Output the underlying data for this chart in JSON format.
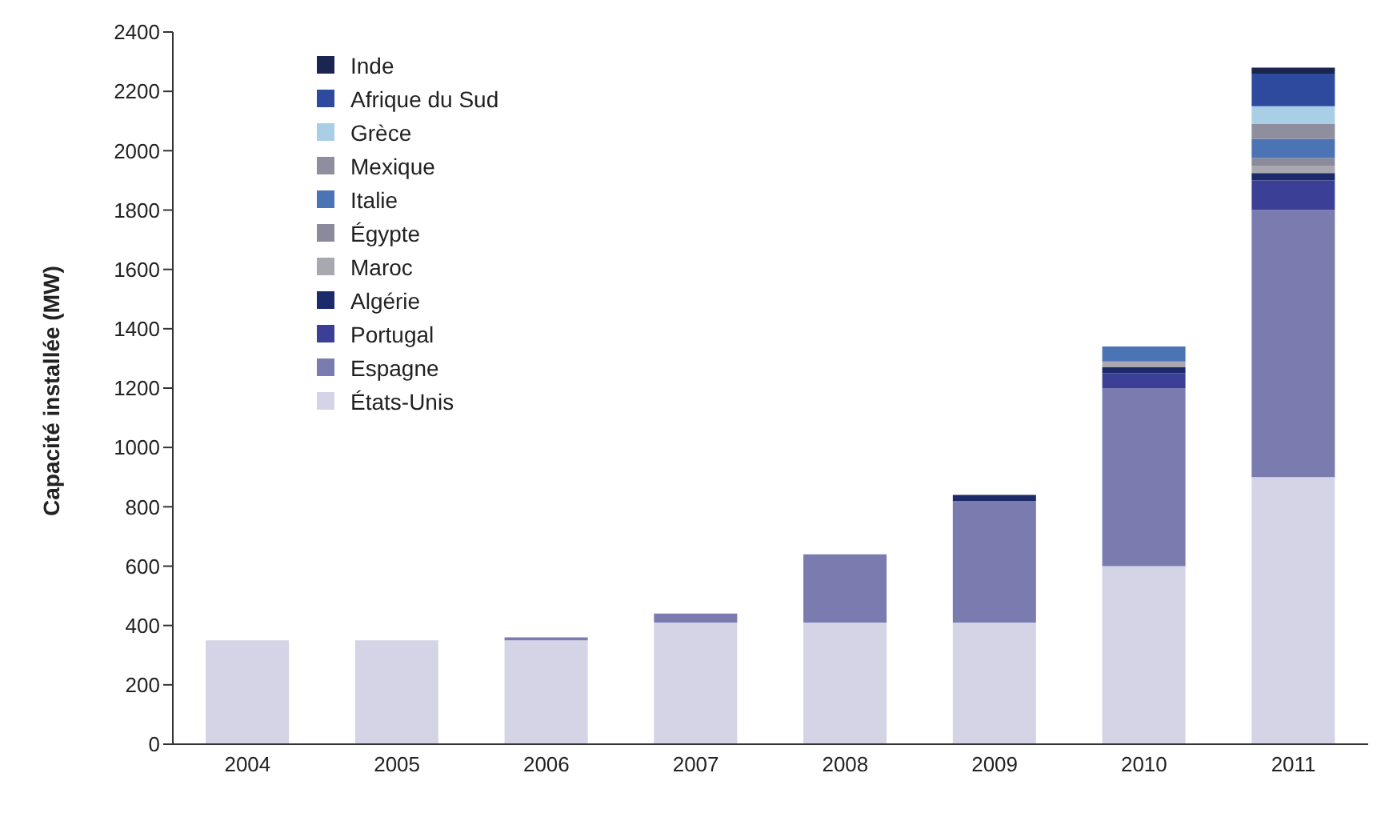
{
  "chart_data": {
    "type": "bar",
    "stacked": true,
    "ylabel": "Capacité installée (MW)",
    "categories": [
      "2004",
      "2005",
      "2006",
      "2007",
      "2008",
      "2009",
      "2010",
      "2011"
    ],
    "series": [
      {
        "name": "États-Unis",
        "color": "#d4d4e6",
        "values": [
          350,
          350,
          350,
          410,
          410,
          410,
          600,
          900
        ]
      },
      {
        "name": "Espagne",
        "color": "#7a7cb0",
        "values": [
          null,
          null,
          10,
          30,
          230,
          410,
          600,
          900
        ]
      },
      {
        "name": "Portugal",
        "color": "#3c3f96",
        "values": [
          null,
          null,
          null,
          null,
          null,
          null,
          50,
          100
        ]
      },
      {
        "name": "Algérie",
        "color": "#1c2a6a",
        "values": [
          null,
          null,
          null,
          null,
          null,
          20,
          20,
          25
        ]
      },
      {
        "name": "Maroc",
        "color": "#a8a8b0",
        "values": [
          null,
          null,
          null,
          null,
          null,
          null,
          20,
          25
        ]
      },
      {
        "name": "Égypte",
        "color": "#8a8a9a",
        "values": [
          null,
          null,
          null,
          null,
          null,
          null,
          null,
          25
        ]
      },
      {
        "name": "Italie",
        "color": "#4a74b4",
        "values": [
          null,
          null,
          null,
          null,
          null,
          null,
          50,
          65
        ]
      },
      {
        "name": "Mexique",
        "color": "#8e8e9e",
        "values": [
          null,
          null,
          null,
          null,
          null,
          null,
          null,
          50
        ]
      },
      {
        "name": "Grèce",
        "color": "#a9cfe6",
        "values": [
          null,
          null,
          null,
          null,
          null,
          null,
          null,
          60
        ]
      },
      {
        "name": "Afrique du Sud",
        "color": "#2e4a9e",
        "values": [
          null,
          null,
          null,
          null,
          null,
          null,
          null,
          110
        ]
      },
      {
        "name": "Inde",
        "color": "#1a2550",
        "values": [
          null,
          null,
          null,
          null,
          null,
          null,
          null,
          20
        ]
      }
    ],
    "ylim": [
      0,
      2400
    ],
    "yticks": [
      0,
      200,
      400,
      600,
      800,
      1000,
      1200,
      1400,
      1600,
      1800,
      2000,
      2200,
      2400
    ],
    "grid": false,
    "legend": "top left"
  }
}
